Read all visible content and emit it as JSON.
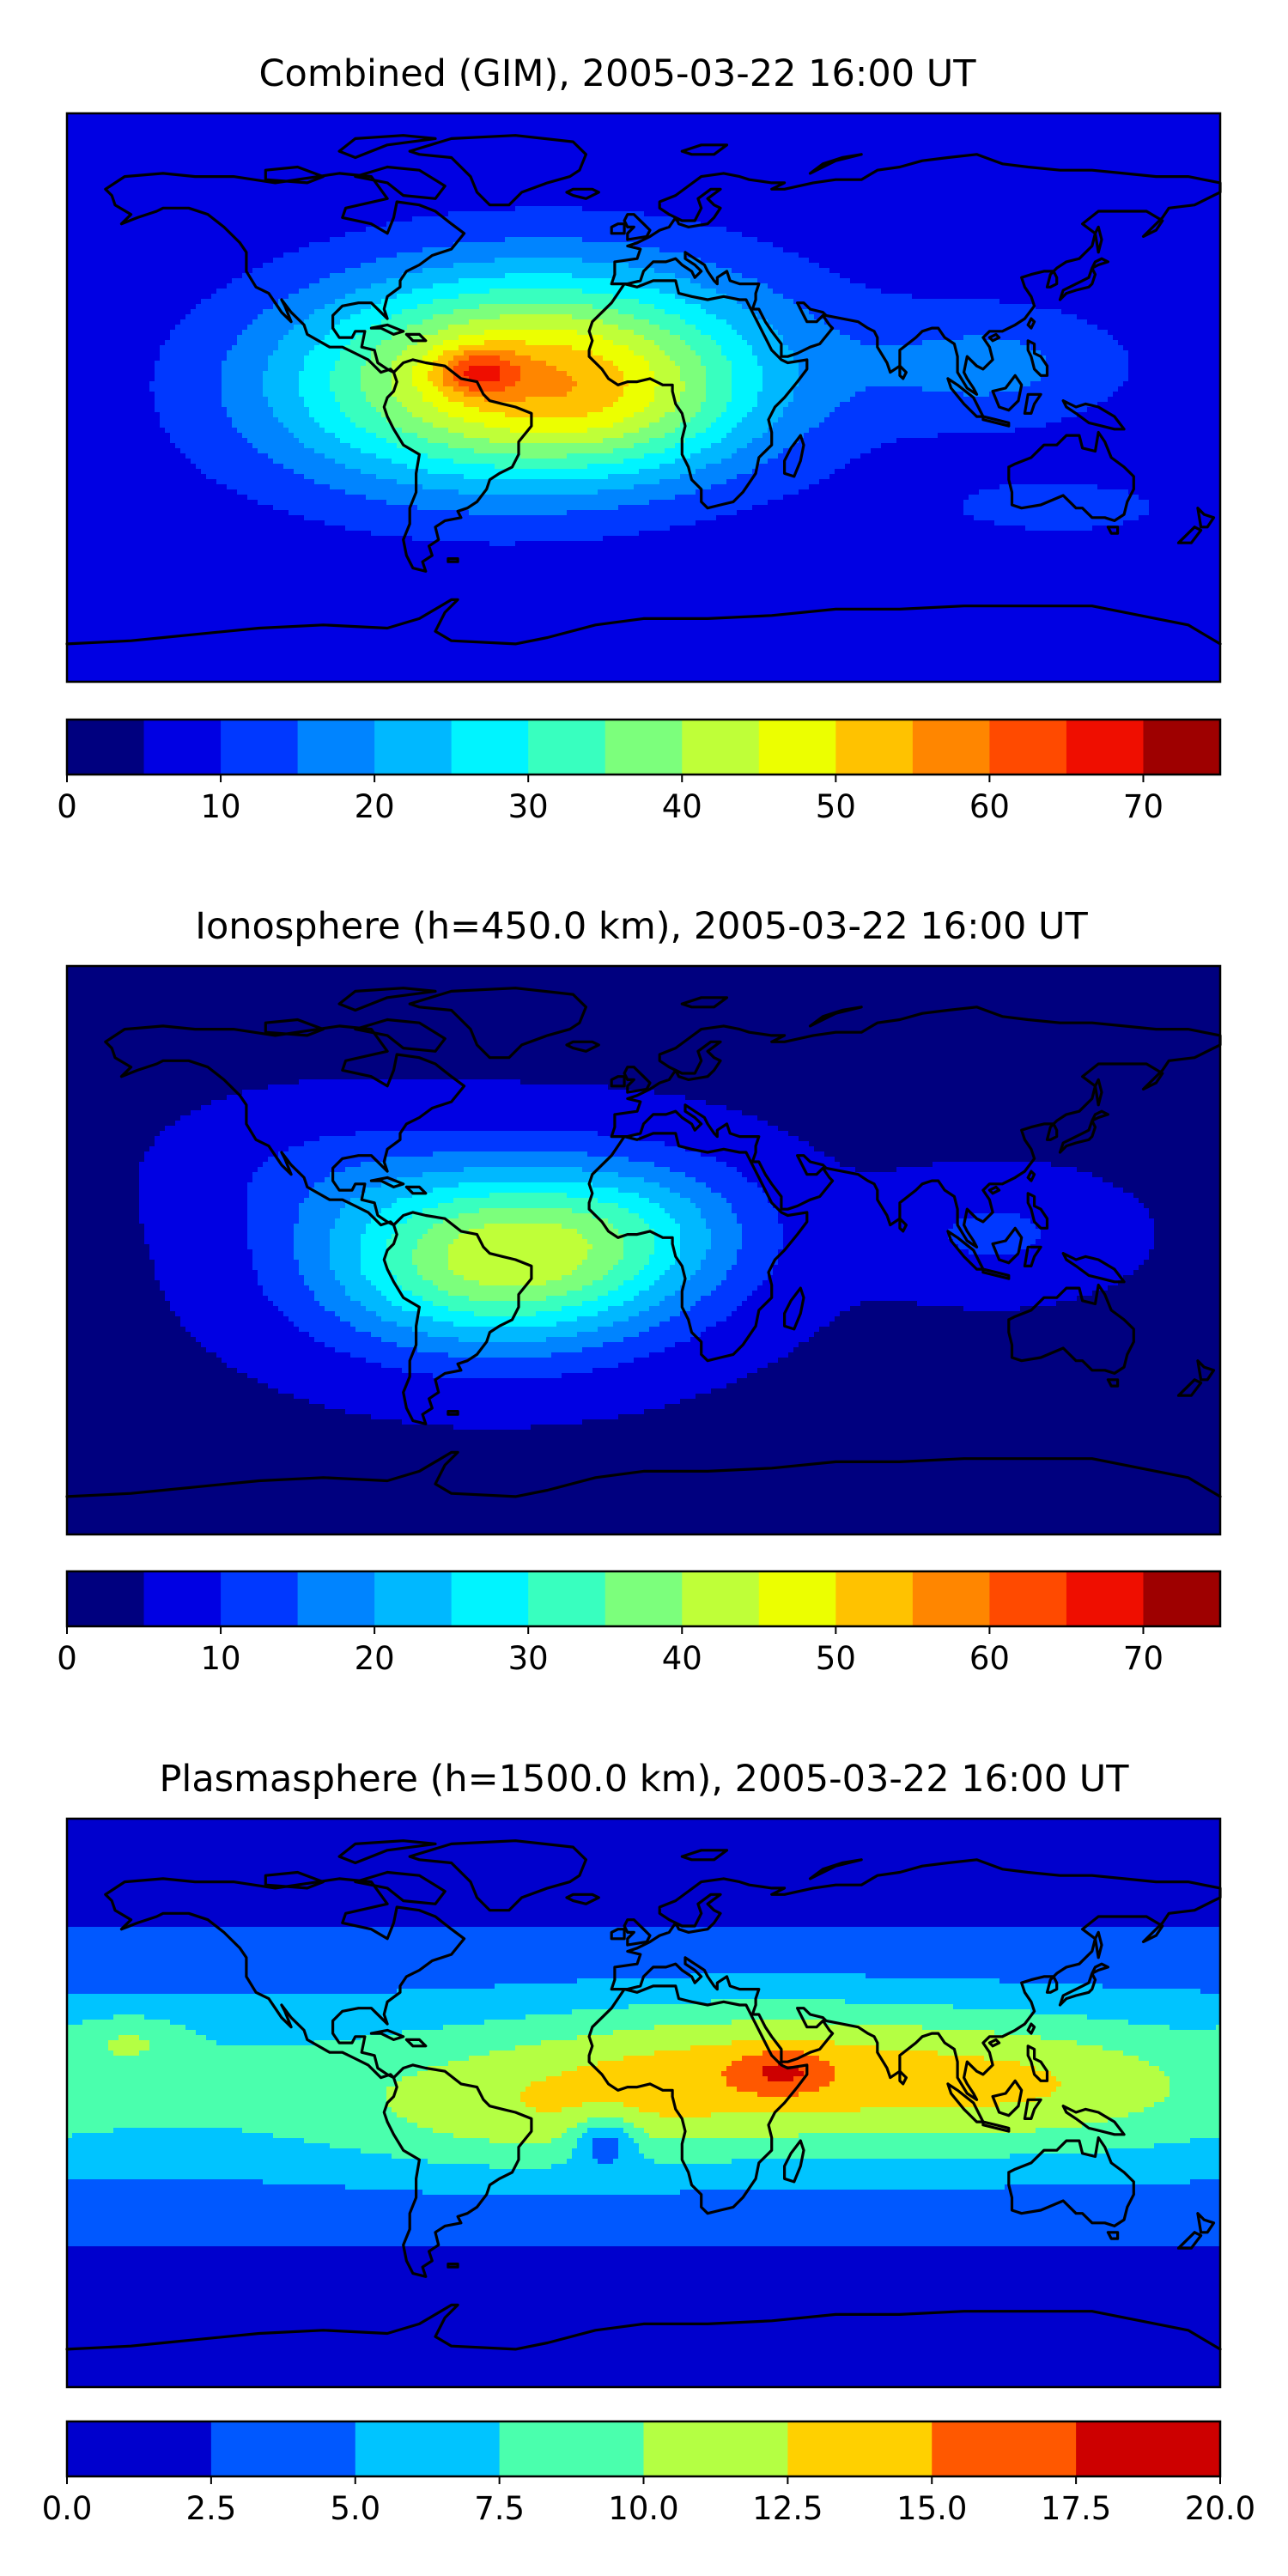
{
  "figure": {
    "colormap": [
      "#00007f",
      "#0000e3",
      "#0038ff",
      "#0084ff",
      "#00b8ff",
      "#00f4ff",
      "#38ffbf",
      "#7cff7c",
      "#bfff38",
      "#ecff00",
      "#ffc200",
      "#ff8600",
      "#ff4a00",
      "#ef0e00",
      "#9e0000"
    ],
    "plasma_colormap": [
      "#0000cd",
      "#0058ff",
      "#00c4ff",
      "#4affad",
      "#b4ff43",
      "#ffd000",
      "#ff5800",
      "#cd0000"
    ],
    "panels": [
      {
        "id": "combined",
        "title": "Combined (GIM), 2005-03-22 16:00 UT",
        "colorbar": {
          "boundaries": [
            0,
            5,
            10,
            15,
            20,
            25,
            30,
            35,
            40,
            45,
            50,
            55,
            60,
            65,
            70,
            75
          ],
          "tick_labels": [
            "0",
            "10",
            "20",
            "30",
            "40",
            "50",
            "60",
            "70"
          ],
          "tick_values": [
            0,
            10,
            20,
            30,
            40,
            50,
            60,
            70
          ]
        },
        "field": {
          "base": 6,
          "blobs": [
            {
              "lon": -38,
              "lat": 7,
              "slon": 52,
              "slat": 24,
              "amp": 46,
              "tilt": -0.15
            },
            {
              "lon": -52,
              "lat": 8,
              "slon": 9,
              "slat": 5,
              "amp": 16,
              "tilt": 0
            },
            {
              "lon": -5,
              "lat": -5,
              "slon": 30,
              "slat": 15,
              "amp": 8,
              "tilt": 0
            },
            {
              "lon": 110,
              "lat": 10,
              "slon": 30,
              "slat": 14,
              "amp": 10,
              "tilt": 0
            },
            {
              "lon": 130,
              "lat": -35,
              "slon": 40,
              "slat": 10,
              "amp": 5,
              "tilt": 0
            }
          ]
        }
      },
      {
        "id": "ionosphere",
        "title": "Ionosphere  (h=450.0 km), 2005-03-22 16:00 UT",
        "colorbar": {
          "boundaries": [
            0,
            5,
            10,
            15,
            20,
            25,
            30,
            35,
            40,
            45,
            50,
            55,
            60,
            65,
            70,
            75
          ],
          "tick_labels": [
            "0",
            "10",
            "20",
            "30",
            "40",
            "50",
            "60",
            "70"
          ],
          "tick_values": [
            0,
            10,
            20,
            30,
            40,
            50,
            60,
            70
          ]
        },
        "field": {
          "base": 4,
          "blobs": [
            {
              "lon": -42,
              "lat": -2,
              "slon": 40,
              "slat": 20,
              "amp": 40,
              "tilt": -0.1
            },
            {
              "lon": 5,
              "lat": 10,
              "slon": 25,
              "slat": 15,
              "amp": 6,
              "tilt": 0
            },
            {
              "lon": 110,
              "lat": 5,
              "slon": 25,
              "slat": 12,
              "amp": 7,
              "tilt": 0
            },
            {
              "lon": -100,
              "lat": 25,
              "slon": 30,
              "slat": 15,
              "amp": 5,
              "tilt": 0
            }
          ]
        }
      },
      {
        "id": "plasmasphere",
        "title": "Plasmasphere (h=1500.0 km), 2005-03-22 16:00 UT",
        "colorbar": {
          "boundaries": [
            0,
            2.5,
            5,
            7.5,
            10,
            12.5,
            15,
            17.5,
            20
          ],
          "tick_labels": [
            "0.0",
            "2.5",
            "5.0",
            "7.5",
            "10.0",
            "12.5",
            "15.0",
            "17.5",
            "20.0"
          ],
          "tick_values": [
            0,
            2.5,
            5,
            7.5,
            10,
            12.5,
            15,
            17.5,
            20
          ]
        },
        "field": {
          "base": 1.5,
          "band": {
            "lat": 5,
            "slat": 26,
            "amp": 6.5
          },
          "blobs": [
            {
              "lon": 40,
              "lat": 10,
              "slon": 55,
              "slat": 16,
              "amp": 6,
              "tilt": 0
            },
            {
              "lon": 43,
              "lat": 10,
              "slon": 10,
              "slat": 5,
              "amp": 4,
              "tilt": 0
            },
            {
              "lon": 125,
              "lat": 5,
              "slon": 35,
              "slat": 14,
              "amp": 3,
              "tilt": 0
            },
            {
              "lon": -40,
              "lat": -5,
              "slon": 40,
              "slat": 14,
              "amp": 3,
              "tilt": 0
            },
            {
              "lon": -12,
              "lat": -12,
              "slon": 7,
              "slat": 6,
              "amp": -6,
              "tilt": 0
            },
            {
              "lon": -160,
              "lat": 20,
              "slon": 12,
              "slat": 6,
              "amp": 3,
              "tilt": 0
            }
          ]
        }
      }
    ]
  }
}
